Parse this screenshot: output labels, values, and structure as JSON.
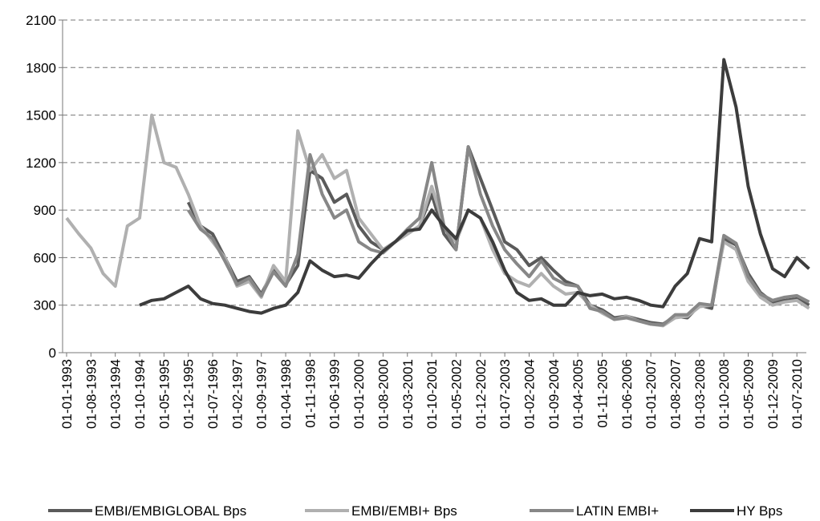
{
  "chart_data": {
    "type": "line",
    "categories": [
      "01-01-1993",
      null,
      "01-08-1993",
      null,
      "01-03-1994",
      null,
      "01-10-1994",
      null,
      "01-05-1995",
      null,
      "01-12-1995",
      null,
      "01-07-1996",
      null,
      "01-02-1997",
      null,
      "01-09-1997",
      null,
      "01-04-1998",
      null,
      "01-11-1998",
      null,
      "01-06-1999",
      null,
      "01-01-2000",
      null,
      "01-08-2000",
      null,
      "01-03-2001",
      null,
      "01-10-2001",
      null,
      "01-05-2002",
      null,
      "01-12-2002",
      null,
      "01-07-2003",
      null,
      "01-02-2004",
      null,
      "01-09-2004",
      null,
      "01-04-2005",
      null,
      "01-11-2005",
      null,
      "01-06-2006",
      null,
      "01-01-2007",
      null,
      "01-08-2007",
      null,
      "01-03-2008",
      null,
      "01-10-2008",
      null,
      "01-05-2009",
      null,
      "01-12-2009",
      null,
      "01-07-2010",
      null
    ],
    "series": [
      {
        "name": "EMBI/EMBIGLOBAL Bps",
        "color": "#5a5a5a",
        "values": [
          null,
          null,
          null,
          null,
          null,
          null,
          null,
          null,
          null,
          null,
          950,
          800,
          750,
          600,
          450,
          480,
          370,
          520,
          430,
          550,
          1150,
          1100,
          950,
          1000,
          800,
          700,
          650,
          700,
          750,
          800,
          1000,
          750,
          650,
          1300,
          1100,
          900,
          700,
          650,
          550,
          600,
          520,
          450,
          420,
          300,
          270,
          220,
          230,
          210,
          190,
          180,
          230,
          220,
          300,
          280,
          720,
          680,
          500,
          380,
          320,
          330,
          340,
          300
        ]
      },
      {
        "name": "EMBI/EMBI+ Bps",
        "color": "#b0b0b0",
        "values": [
          850,
          750,
          660,
          500,
          420,
          800,
          850,
          1500,
          1200,
          1170,
          1000,
          800,
          700,
          600,
          420,
          450,
          350,
          550,
          450,
          1400,
          1150,
          1250,
          1100,
          1150,
          850,
          750,
          650,
          700,
          750,
          800,
          1050,
          800,
          700,
          900,
          850,
          650,
          500,
          450,
          420,
          500,
          420,
          370,
          380,
          300,
          250,
          210,
          230,
          200,
          180,
          170,
          220,
          230,
          290,
          300,
          700,
          650,
          450,
          350,
          300,
          320,
          330,
          280
        ]
      },
      {
        "name": "LATIN EMBI+",
        "color": "#878787",
        "values": [
          null,
          null,
          null,
          null,
          null,
          null,
          null,
          null,
          null,
          null,
          900,
          780,
          720,
          580,
          430,
          470,
          360,
          510,
          420,
          620,
          1250,
          1000,
          850,
          900,
          700,
          650,
          630,
          700,
          780,
          850,
          1200,
          800,
          650,
          1300,
          1000,
          800,
          650,
          560,
          480,
          580,
          470,
          430,
          420,
          280,
          260,
          210,
          220,
          200,
          180,
          175,
          240,
          240,
          310,
          300,
          740,
          690,
          480,
          370,
          330,
          350,
          360,
          320
        ]
      },
      {
        "name": "HY Bps",
        "color": "#3c3c3c",
        "values": [
          null,
          null,
          null,
          null,
          null,
          null,
          300,
          330,
          340,
          380,
          420,
          340,
          310,
          300,
          280,
          260,
          250,
          280,
          300,
          380,
          580,
          520,
          480,
          490,
          470,
          560,
          640,
          700,
          770,
          780,
          900,
          800,
          720,
          900,
          850,
          700,
          520,
          380,
          330,
          340,
          300,
          300,
          380,
          360,
          370,
          340,
          350,
          330,
          300,
          290,
          420,
          500,
          720,
          700,
          1850,
          1550,
          1050,
          750,
          530,
          480,
          600,
          530
        ]
      }
    ],
    "ylim": [
      0,
      2100
    ],
    "yticks": [
      0,
      300,
      600,
      900,
      1200,
      1500,
      1800,
      2100
    ],
    "grid": true,
    "legend": "bottom"
  }
}
